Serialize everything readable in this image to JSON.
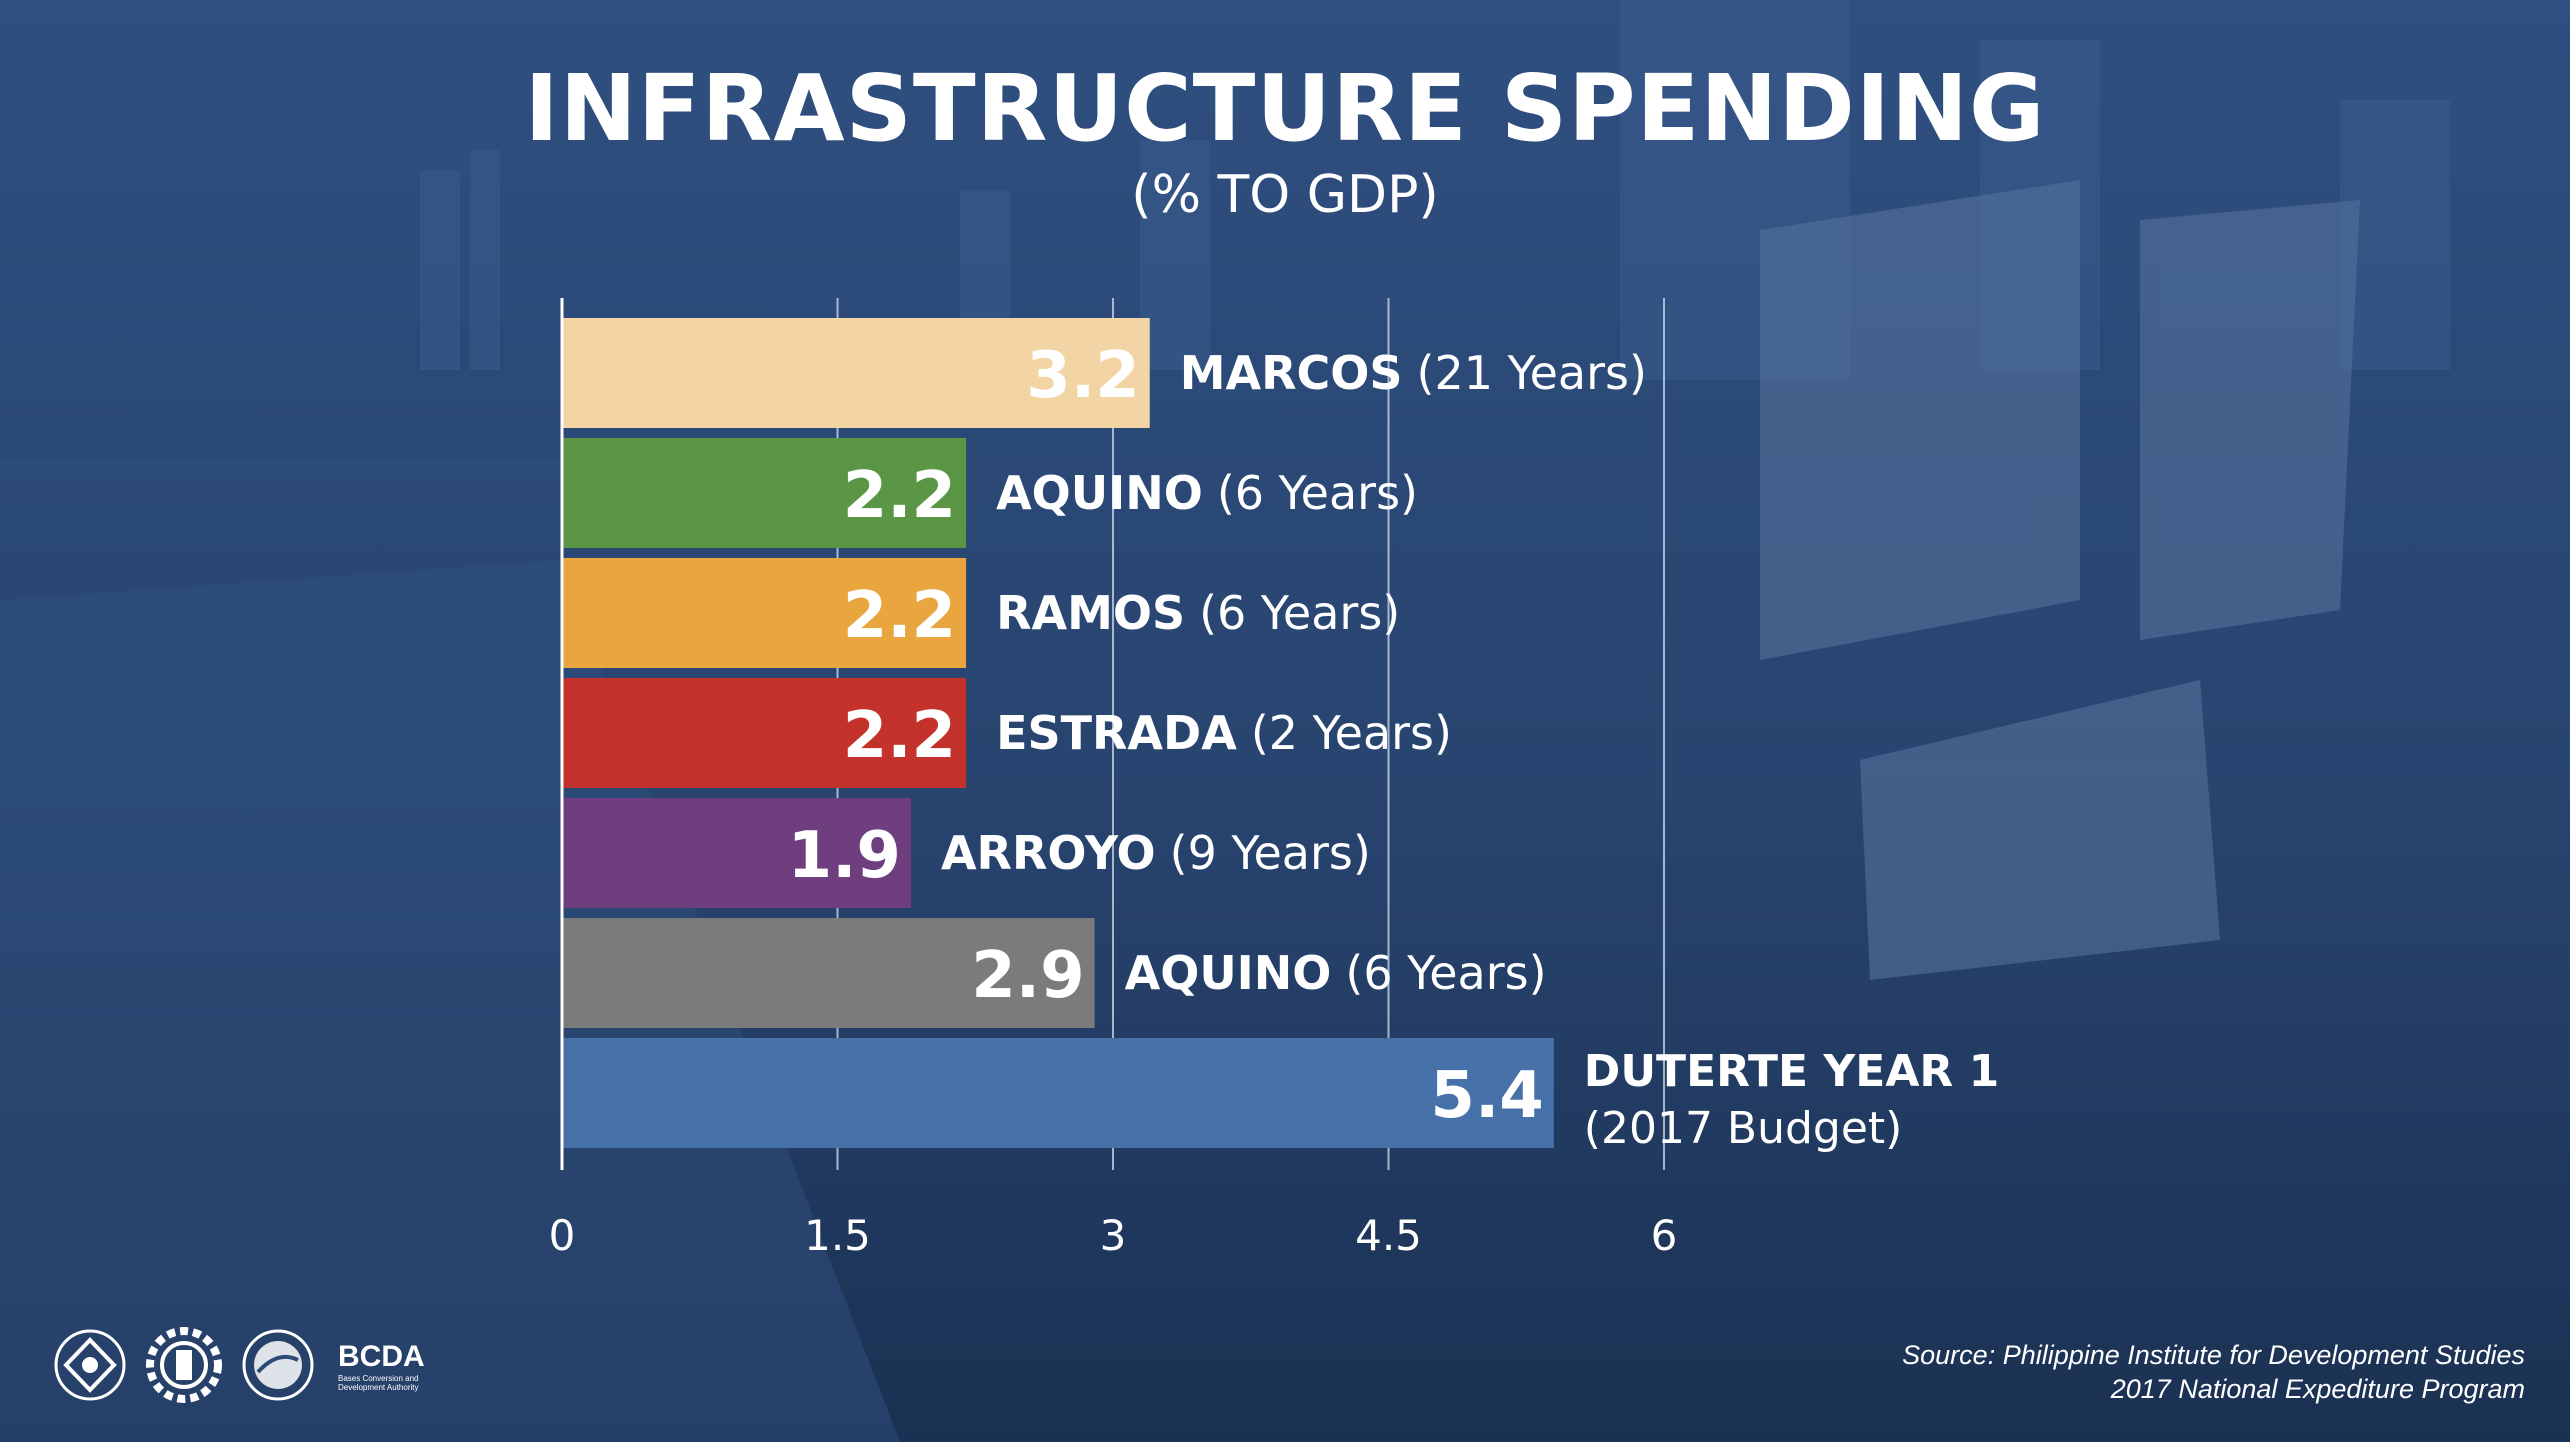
{
  "page": {
    "title": "INFRASTRUCTURE SPENDING",
    "subtitle": "(% TO GDP)",
    "source_line1": "Source:  Philippine Institute for Development Studies",
    "source_line2": "2017 National Expediture Program",
    "brand": "BCDA",
    "brand_sub": "Bases Conversion and Development Authority"
  },
  "colors": {
    "background_top": "#2d4b79",
    "background_bottom": "#1c3358",
    "gridline": "#c9d4e6"
  },
  "icons": [
    "dpwh-seal-icon",
    "gear-seal-icon",
    "dotr-seal-icon"
  ],
  "chart_data": {
    "type": "bar",
    "orientation": "horizontal",
    "title": "INFRASTRUCTURE SPENDING",
    "subtitle": "(% TO GDP)",
    "xlim": [
      0,
      6
    ],
    "xticks": [
      "0",
      "1.5",
      "3",
      "4.5",
      "6"
    ],
    "grid": true,
    "bars": [
      {
        "label": "MARCOS",
        "note": "(21 Years)",
        "value": 3.2,
        "value_label": "3.2",
        "color": "#f3d5a5"
      },
      {
        "label": "AQUINO",
        "note": "(6 Years)",
        "value": 2.2,
        "value_label": "2.2",
        "color": "#5a9645"
      },
      {
        "label": "RAMOS",
        "note": "(6 Years)",
        "value": 2.2,
        "value_label": "2.2",
        "color": "#e9a53e"
      },
      {
        "label": "ESTRADA",
        "note": "(2 Years)",
        "value": 2.2,
        "value_label": "2.2",
        "color": "#c3332c"
      },
      {
        "label": "ARROYO",
        "note": "(9 Years)",
        "value": 1.9,
        "value_label": "1.9",
        "color": "#6e3e7f"
      },
      {
        "label": "AQUINO",
        "note": "(6 Years)",
        "value": 2.9,
        "value_label": "2.9",
        "color": "#7b7b7b"
      },
      {
        "label": "DUTERTE YEAR 1",
        "note": "(2017 Budget)",
        "value": 5.4,
        "value_label": "5.4",
        "color": "#4771a9",
        "note_newline": true
      }
    ]
  }
}
